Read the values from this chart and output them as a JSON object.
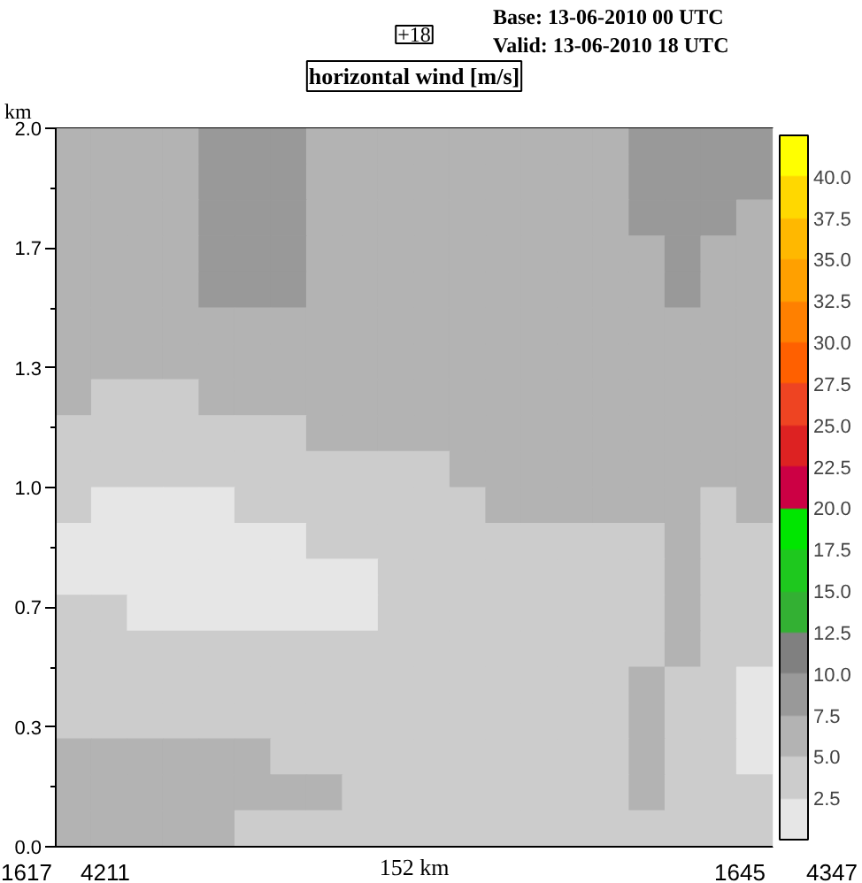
{
  "chart_data": {
    "type": "heatmap",
    "title": "horizontal wind [m/s]",
    "xlabel": "152 km",
    "ylabel": "km",
    "annotations": [
      "+18",
      "Base: 13-06-2010  00 UTC",
      "Valid: 13-06-2010  18 UTC",
      "1617",
      "4211",
      "1645",
      "4347"
    ],
    "categories": [
      null,
      null,
      null,
      null,
      null,
      null,
      null,
      null,
      null,
      null,
      null,
      null,
      null,
      null,
      null,
      null,
      null,
      null,
      null,
      null
    ],
    "ylim": [
      0,
      2
    ],
    "yticks": [
      {
        "value": 0,
        "label": "0.0"
      },
      {
        "value": 0.167,
        "label": null
      },
      {
        "value": 0.333,
        "label": "0.3"
      },
      {
        "value": 0.5,
        "label": null
      },
      {
        "value": 0.667,
        "label": "0.7"
      },
      {
        "value": 0.833,
        "label": null
      },
      {
        "value": 1,
        "label": "1.0"
      },
      {
        "value": 1.167,
        "label": null
      },
      {
        "value": 1.333,
        "label": "1.3"
      },
      {
        "value": 1.5,
        "label": null
      },
      {
        "value": 1.667,
        "label": "1.7"
      },
      {
        "value": 1.833,
        "label": null
      },
      {
        "value": 2,
        "label": "2.0"
      }
    ],
    "clim": [
      0,
      42.5
    ],
    "cticks": [
      2.5,
      {
        "value": 5,
        "label": "5.0"
      },
      7.5,
      {
        "value": 10,
        "label": "10.0"
      },
      12.5,
      {
        "value": 15,
        "label": "15.0"
      },
      17.5,
      {
        "value": 20,
        "label": "20.0"
      },
      22.5,
      {
        "value": 25,
        "label": "25.0"
      },
      27.5,
      {
        "value": 30,
        "label": "30.0"
      },
      32.5,
      {
        "value": 35,
        "label": "35.0"
      },
      37.5,
      {
        "value": 40,
        "label": "40.0"
      }
    ],
    "colors": [
      "#e6e6e6",
      "#cccccc",
      "#b3b3b3",
      "#999999",
      "#808080",
      "#33b033",
      "#1ec81e",
      "#00e600",
      "#cc0044",
      "#dd2222",
      "#ee4422",
      "#ff6000",
      "#ff8000",
      "#ffa000",
      "#ffb800",
      "#ffd800",
      "#ffff00"
    ],
    "cells": [
      [
        6.25,
        6.25,
        6.25,
        6.25,
        8.75,
        8.75,
        8.75,
        6.25,
        6.25,
        6.25,
        6.25,
        6.25,
        6.25,
        6.25,
        6.25,
        6.25,
        8.75,
        8.75,
        8.75,
        8.75
      ],
      [
        6.25,
        6.25,
        6.25,
        6.25,
        8.75,
        8.75,
        8.75,
        6.25,
        6.25,
        6.25,
        6.25,
        6.25,
        6.25,
        6.25,
        6.25,
        6.25,
        8.75,
        8.75,
        8.75,
        8.75
      ],
      [
        6.25,
        6.25,
        6.25,
        6.25,
        8.75,
        8.75,
        8.75,
        6.25,
        6.25,
        6.25,
        6.25,
        6.25,
        6.25,
        6.25,
        6.25,
        6.25,
        8.75,
        8.75,
        8.75,
        6.25
      ],
      [
        6.25,
        6.25,
        6.25,
        6.25,
        8.75,
        8.75,
        8.75,
        6.25,
        6.25,
        6.25,
        6.25,
        6.25,
        6.25,
        6.25,
        6.25,
        6.25,
        6.25,
        8.75,
        6.25,
        6.25
      ],
      [
        6.25,
        6.25,
        6.25,
        6.25,
        8.75,
        8.75,
        8.75,
        6.25,
        6.25,
        6.25,
        6.25,
        6.25,
        6.25,
        6.25,
        6.25,
        6.25,
        6.25,
        8.75,
        6.25,
        6.25
      ],
      [
        6.25,
        6.25,
        6.25,
        6.25,
        6.25,
        6.25,
        6.25,
        6.25,
        6.25,
        6.25,
        6.25,
        6.25,
        6.25,
        6.25,
        6.25,
        6.25,
        6.25,
        6.25,
        6.25,
        6.25
      ],
      [
        6.25,
        6.25,
        6.25,
        6.25,
        6.25,
        6.25,
        6.25,
        6.25,
        6.25,
        6.25,
        6.25,
        6.25,
        6.25,
        6.25,
        6.25,
        6.25,
        6.25,
        6.25,
        6.25,
        6.25
      ],
      [
        6.25,
        3.75,
        3.75,
        3.75,
        6.25,
        6.25,
        6.25,
        6.25,
        6.25,
        6.25,
        6.25,
        6.25,
        6.25,
        6.25,
        6.25,
        6.25,
        6.25,
        6.25,
        6.25,
        6.25
      ],
      [
        3.75,
        3.75,
        3.75,
        3.75,
        3.75,
        3.75,
        3.75,
        6.25,
        6.25,
        6.25,
        6.25,
        6.25,
        6.25,
        6.25,
        6.25,
        6.25,
        6.25,
        6.25,
        6.25,
        6.25
      ],
      [
        3.75,
        3.75,
        3.75,
        3.75,
        3.75,
        3.75,
        3.75,
        3.75,
        3.75,
        3.75,
        3.75,
        6.25,
        6.25,
        6.25,
        6.25,
        6.25,
        6.25,
        6.25,
        6.25,
        6.25
      ],
      [
        3.75,
        1.25,
        1.25,
        1.25,
        1.25,
        3.75,
        3.75,
        3.75,
        3.75,
        3.75,
        3.75,
        3.75,
        6.25,
        6.25,
        6.25,
        6.25,
        6.25,
        6.25,
        3.75,
        6.25
      ],
      [
        1.25,
        1.25,
        1.25,
        1.25,
        1.25,
        1.25,
        1.25,
        3.75,
        3.75,
        3.75,
        3.75,
        3.75,
        3.75,
        3.75,
        3.75,
        3.75,
        3.75,
        6.25,
        3.75,
        3.75
      ],
      [
        1.25,
        1.25,
        1.25,
        1.25,
        1.25,
        1.25,
        1.25,
        1.25,
        1.25,
        3.75,
        3.75,
        3.75,
        3.75,
        3.75,
        3.75,
        3.75,
        3.75,
        6.25,
        3.75,
        3.75
      ],
      [
        3.75,
        3.75,
        1.25,
        1.25,
        1.25,
        1.25,
        1.25,
        1.25,
        1.25,
        3.75,
        3.75,
        3.75,
        3.75,
        3.75,
        3.75,
        3.75,
        3.75,
        6.25,
        3.75,
        3.75
      ],
      [
        3.75,
        3.75,
        3.75,
        3.75,
        3.75,
        3.75,
        3.75,
        3.75,
        3.75,
        3.75,
        3.75,
        3.75,
        3.75,
        3.75,
        3.75,
        3.75,
        3.75,
        6.25,
        3.75,
        3.75
      ],
      [
        3.75,
        3.75,
        3.75,
        3.75,
        3.75,
        3.75,
        3.75,
        3.75,
        3.75,
        3.75,
        3.75,
        3.75,
        3.75,
        3.75,
        3.75,
        3.75,
        6.25,
        3.75,
        3.75,
        1.25
      ],
      [
        3.75,
        3.75,
        3.75,
        3.75,
        3.75,
        3.75,
        3.75,
        3.75,
        3.75,
        3.75,
        3.75,
        3.75,
        3.75,
        3.75,
        3.75,
        3.75,
        6.25,
        3.75,
        3.75,
        1.25
      ],
      [
        6.25,
        6.25,
        6.25,
        6.25,
        6.25,
        6.25,
        3.75,
        3.75,
        3.75,
        3.75,
        3.75,
        3.75,
        3.75,
        3.75,
        3.75,
        3.75,
        6.25,
        3.75,
        3.75,
        1.25
      ],
      [
        6.25,
        6.25,
        6.25,
        6.25,
        6.25,
        6.25,
        6.25,
        6.25,
        3.75,
        3.75,
        3.75,
        3.75,
        3.75,
        3.75,
        3.75,
        3.75,
        6.25,
        3.75,
        3.75,
        3.75
      ],
      [
        6.25,
        6.25,
        6.25,
        6.25,
        6.25,
        3.75,
        3.75,
        3.75,
        3.75,
        3.75,
        3.75,
        3.75,
        3.75,
        3.75,
        3.75,
        3.75,
        3.75,
        3.75,
        3.75,
        3.75
      ]
    ]
  }
}
